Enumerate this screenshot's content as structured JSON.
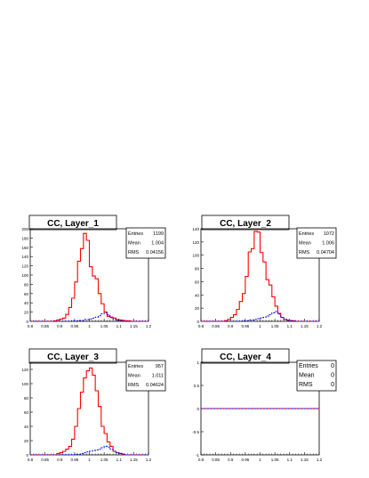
{
  "chart_data": [
    {
      "type": "histogram",
      "title": "CC, Layer_1",
      "x_range": [
        0.8,
        1.2
      ],
      "y_range": [
        0,
        200
      ],
      "x_ticks": [
        "0.8",
        "0.85",
        "0.9",
        "0.95",
        "1",
        "1.05",
        "1.1",
        "1.15",
        "1.2"
      ],
      "y_ticks": [
        "0",
        "20",
        "40",
        "60",
        "80",
        "100",
        "120",
        "140",
        "160",
        "180",
        "200"
      ],
      "bin_width": 0.01,
      "stats": [
        {
          "label": "Entries",
          "value": "1199"
        },
        {
          "label": "Mean",
          "value": "1.004"
        },
        {
          "label": "RMS",
          "value": "0.04156"
        }
      ],
      "series": [
        {
          "color": "#ff0000",
          "style": "solid",
          "values": [
            0,
            0,
            0,
            0,
            0,
            0,
            0,
            0,
            1,
            3,
            5,
            7,
            15,
            30,
            50,
            85,
            130,
            157,
            190,
            175,
            118,
            98,
            92,
            60,
            38,
            20,
            11,
            9,
            7,
            4,
            3,
            2,
            1,
            1,
            0,
            0,
            0,
            0,
            0,
            0
          ]
        },
        {
          "color": "#0000ff",
          "style": "dashed",
          "values": [
            0,
            0,
            0,
            0,
            0,
            0,
            0,
            0,
            0,
            0,
            0,
            0,
            0,
            0,
            1,
            1,
            2,
            2,
            4,
            4,
            5,
            7,
            9,
            12,
            16,
            18,
            14,
            8,
            4,
            2,
            1,
            0,
            0,
            0,
            0,
            0,
            0,
            0,
            0,
            0
          ]
        }
      ]
    },
    {
      "type": "histogram",
      "title": "CC, Layer_2",
      "x_range": [
        0.8,
        1.2
      ],
      "y_range": [
        0,
        140
      ],
      "x_ticks": [
        "0.8",
        "0.85",
        "0.9",
        "0.95",
        "1",
        "1.05",
        "1.1",
        "1.15",
        "1.2"
      ],
      "y_ticks": [
        "0",
        "20",
        "40",
        "60",
        "80",
        "100",
        "120",
        "140"
      ],
      "bin_width": 0.01,
      "stats": [
        {
          "label": "Entries",
          "value": "1072"
        },
        {
          "label": "Mean",
          "value": "1.006"
        },
        {
          "label": "RMS",
          "value": "0.04704"
        }
      ],
      "series": [
        {
          "color": "#ff0000",
          "style": "solid",
          "values": [
            0,
            0,
            0,
            0,
            0,
            0,
            0,
            0,
            1,
            3,
            6,
            10,
            18,
            30,
            42,
            68,
            105,
            110,
            136,
            135,
            104,
            90,
            63,
            55,
            37,
            23,
            12,
            6,
            3,
            2,
            1,
            1,
            0,
            0,
            0,
            0,
            0,
            0,
            0,
            0
          ]
        },
        {
          "color": "#0000ff",
          "style": "dashed",
          "values": [
            0,
            0,
            0,
            0,
            0,
            0,
            0,
            0,
            0,
            0,
            0,
            0,
            0,
            0,
            1,
            1,
            2,
            2,
            3,
            4,
            5,
            6,
            8,
            10,
            13,
            15,
            11,
            6,
            3,
            1,
            1,
            0,
            0,
            0,
            0,
            0,
            0,
            0,
            0,
            0
          ]
        }
      ]
    },
    {
      "type": "histogram",
      "title": "CC, Layer_3",
      "x_range": [
        0.8,
        1.2
      ],
      "y_range": [
        0,
        130
      ],
      "x_ticks": [
        "0.8",
        "0.85",
        "0.9",
        "0.95",
        "1",
        "1.05",
        "1.1",
        "1.15",
        "1.2"
      ],
      "y_ticks": [
        "0",
        "20",
        "40",
        "60",
        "80",
        "100",
        "120"
      ],
      "bin_width": 0.01,
      "stats": [
        {
          "label": "Entries",
          "value": "957"
        },
        {
          "label": "Mean",
          "value": "1.011"
        },
        {
          "label": "RMS",
          "value": "0.04624"
        }
      ],
      "series": [
        {
          "color": "#ff0000",
          "style": "solid",
          "values": [
            0,
            0,
            0,
            0,
            0,
            0,
            0,
            0,
            0,
            2,
            3,
            5,
            8,
            12,
            22,
            40,
            65,
            88,
            108,
            118,
            122,
            112,
            90,
            68,
            40,
            30,
            18,
            12,
            5,
            3,
            2,
            1,
            0,
            0,
            0,
            0,
            0,
            0,
            0,
            0
          ]
        },
        {
          "color": "#0000ff",
          "style": "dashed",
          "values": [
            0,
            0,
            0,
            0,
            0,
            0,
            0,
            0,
            0,
            0,
            0,
            0,
            0,
            0,
            0,
            1,
            1,
            2,
            3,
            4,
            5,
            6,
            7,
            8,
            10,
            12,
            11,
            8,
            5,
            3,
            2,
            1,
            0,
            0,
            0,
            0,
            0,
            0,
            0,
            0
          ]
        }
      ]
    },
    {
      "type": "histogram",
      "title": "CC, Layer_4",
      "x_range": [
        0.8,
        1.2
      ],
      "y_range": [
        -1,
        1
      ],
      "x_ticks": [
        "0.8",
        "0.85",
        "0.9",
        "0.95",
        "1",
        "1.05",
        "1.1",
        "1.15",
        "1.2"
      ],
      "y_ticks": [
        "-1",
        "-0.5",
        "0",
        "0.5",
        "1"
      ],
      "bin_width": 0.01,
      "stats": [
        {
          "label": "Entries",
          "value": "0"
        },
        {
          "label": "Mean",
          "value": "0"
        },
        {
          "label": "RMS",
          "value": "0"
        }
      ],
      "series": [
        {
          "color": "#ff0000",
          "style": "solid",
          "values": [
            0,
            0,
            0,
            0,
            0,
            0,
            0,
            0,
            0,
            0,
            0,
            0,
            0,
            0,
            0,
            0,
            0,
            0,
            0,
            0,
            0,
            0,
            0,
            0,
            0,
            0,
            0,
            0,
            0,
            0,
            0,
            0,
            0,
            0,
            0,
            0,
            0,
            0,
            0,
            0
          ]
        },
        {
          "color": "#0000ff",
          "style": "dashed",
          "values": [
            0,
            0,
            0,
            0,
            0,
            0,
            0,
            0,
            0,
            0,
            0,
            0,
            0,
            0,
            0,
            0,
            0,
            0,
            0,
            0,
            0,
            0,
            0,
            0,
            0,
            0,
            0,
            0,
            0,
            0,
            0,
            0,
            0,
            0,
            0,
            0,
            0,
            0,
            0,
            0
          ]
        }
      ]
    }
  ]
}
